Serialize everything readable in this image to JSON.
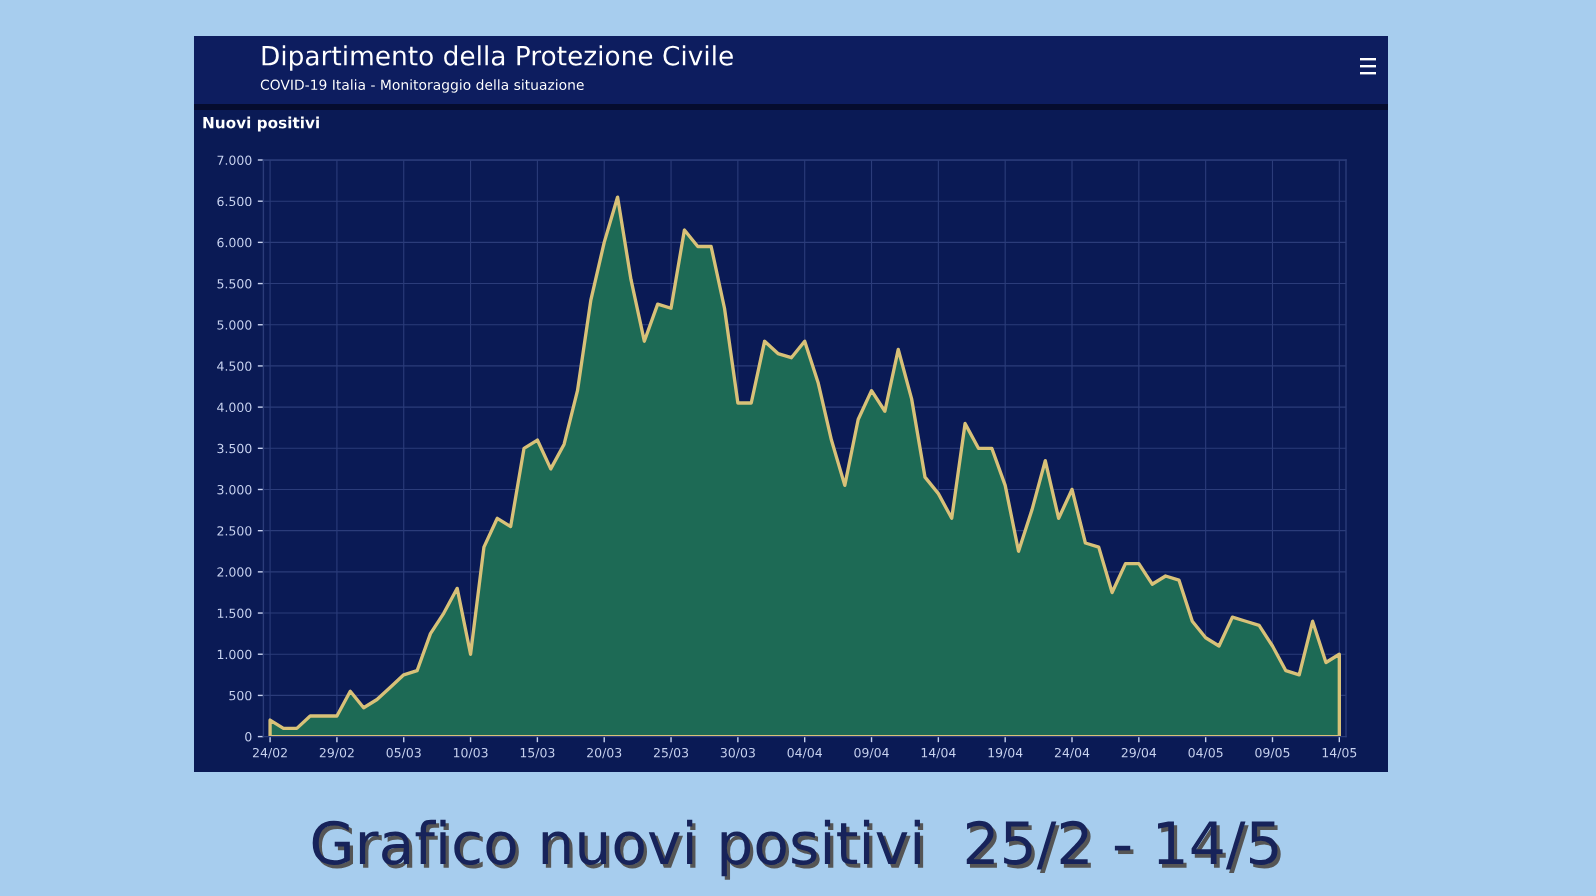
{
  "chart_data": {
    "type": "area",
    "title": "Nuovi positivi",
    "annotations": [
      "Dipartimento della Protezione Civile",
      "COVID-19 Italia - Monitoraggio della situazione",
      "Grafico nuovi positivi  25/2 - 14/5"
    ],
    "categories": [
      "24/02",
      null,
      null,
      null,
      null,
      "29/02",
      null,
      null,
      null,
      null,
      "05/03",
      null,
      null,
      null,
      null,
      "10/03",
      null,
      null,
      null,
      null,
      "15/03",
      null,
      null,
      null,
      null,
      "20/03",
      null,
      null,
      null,
      null,
      "25/03",
      null,
      null,
      null,
      null,
      "30/03",
      null,
      null,
      null,
      null,
      "04/04",
      null,
      null,
      null,
      null,
      "09/04",
      null,
      null,
      null,
      null,
      "14/04",
      null,
      null,
      null,
      null,
      "19/04",
      null,
      null,
      null,
      null,
      "24/04",
      null,
      null,
      null,
      null,
      "29/04",
      null,
      null,
      null,
      null,
      "04/05",
      null,
      null,
      null,
      null,
      "09/05",
      null,
      null,
      null,
      null,
      "14/05"
    ],
    "series": [
      {
        "color": "#1d6a55",
        "values": [
          200,
          100,
          100,
          250,
          250,
          250,
          550,
          350,
          450,
          600,
          750,
          800,
          1250,
          1500,
          1800,
          1000,
          2300,
          2650,
          2550,
          3500,
          3600,
          3250,
          3550,
          4200,
          5300,
          6000,
          6550,
          5550,
          4800,
          5250,
          5200,
          6150,
          5950,
          5950,
          5200,
          4050,
          4050,
          4800,
          4650,
          4600,
          4800,
          4300,
          3600,
          3050,
          3850,
          4200,
          3950,
          4700,
          4100,
          3150,
          2950,
          2650,
          3800,
          3500,
          3500,
          3050,
          2250,
          2750,
          3350,
          2650,
          3000,
          2350,
          2300,
          1750,
          2100,
          2100,
          1850,
          1950,
          1900,
          1400,
          1200,
          1100,
          1450,
          1400,
          1350,
          1100,
          800,
          750,
          1400,
          900,
          1000
        ]
      }
    ],
    "ylim": [
      0,
      7000
    ],
    "yticks": [
      0,
      500,
      {
        "value": 1000,
        "label": "1.000"
      },
      {
        "value": 1500,
        "label": "1.500"
      },
      {
        "value": 2000,
        "label": "2.000"
      },
      {
        "value": 2500,
        "label": "2.500"
      },
      {
        "value": 3000,
        "label": "3.000"
      },
      {
        "value": 3500,
        "label": "3.500"
      },
      {
        "value": 4000,
        "label": "4.000"
      },
      {
        "value": 4500,
        "label": "4.500"
      },
      {
        "value": 5000,
        "label": "5.000"
      },
      {
        "value": 5500,
        "label": "5.500"
      },
      {
        "value": 6000,
        "label": "6.000"
      },
      {
        "value": 6500,
        "label": "6.500"
      },
      {
        "value": 7000,
        "label": "7.000"
      }
    ],
    "grid": true
  }
}
